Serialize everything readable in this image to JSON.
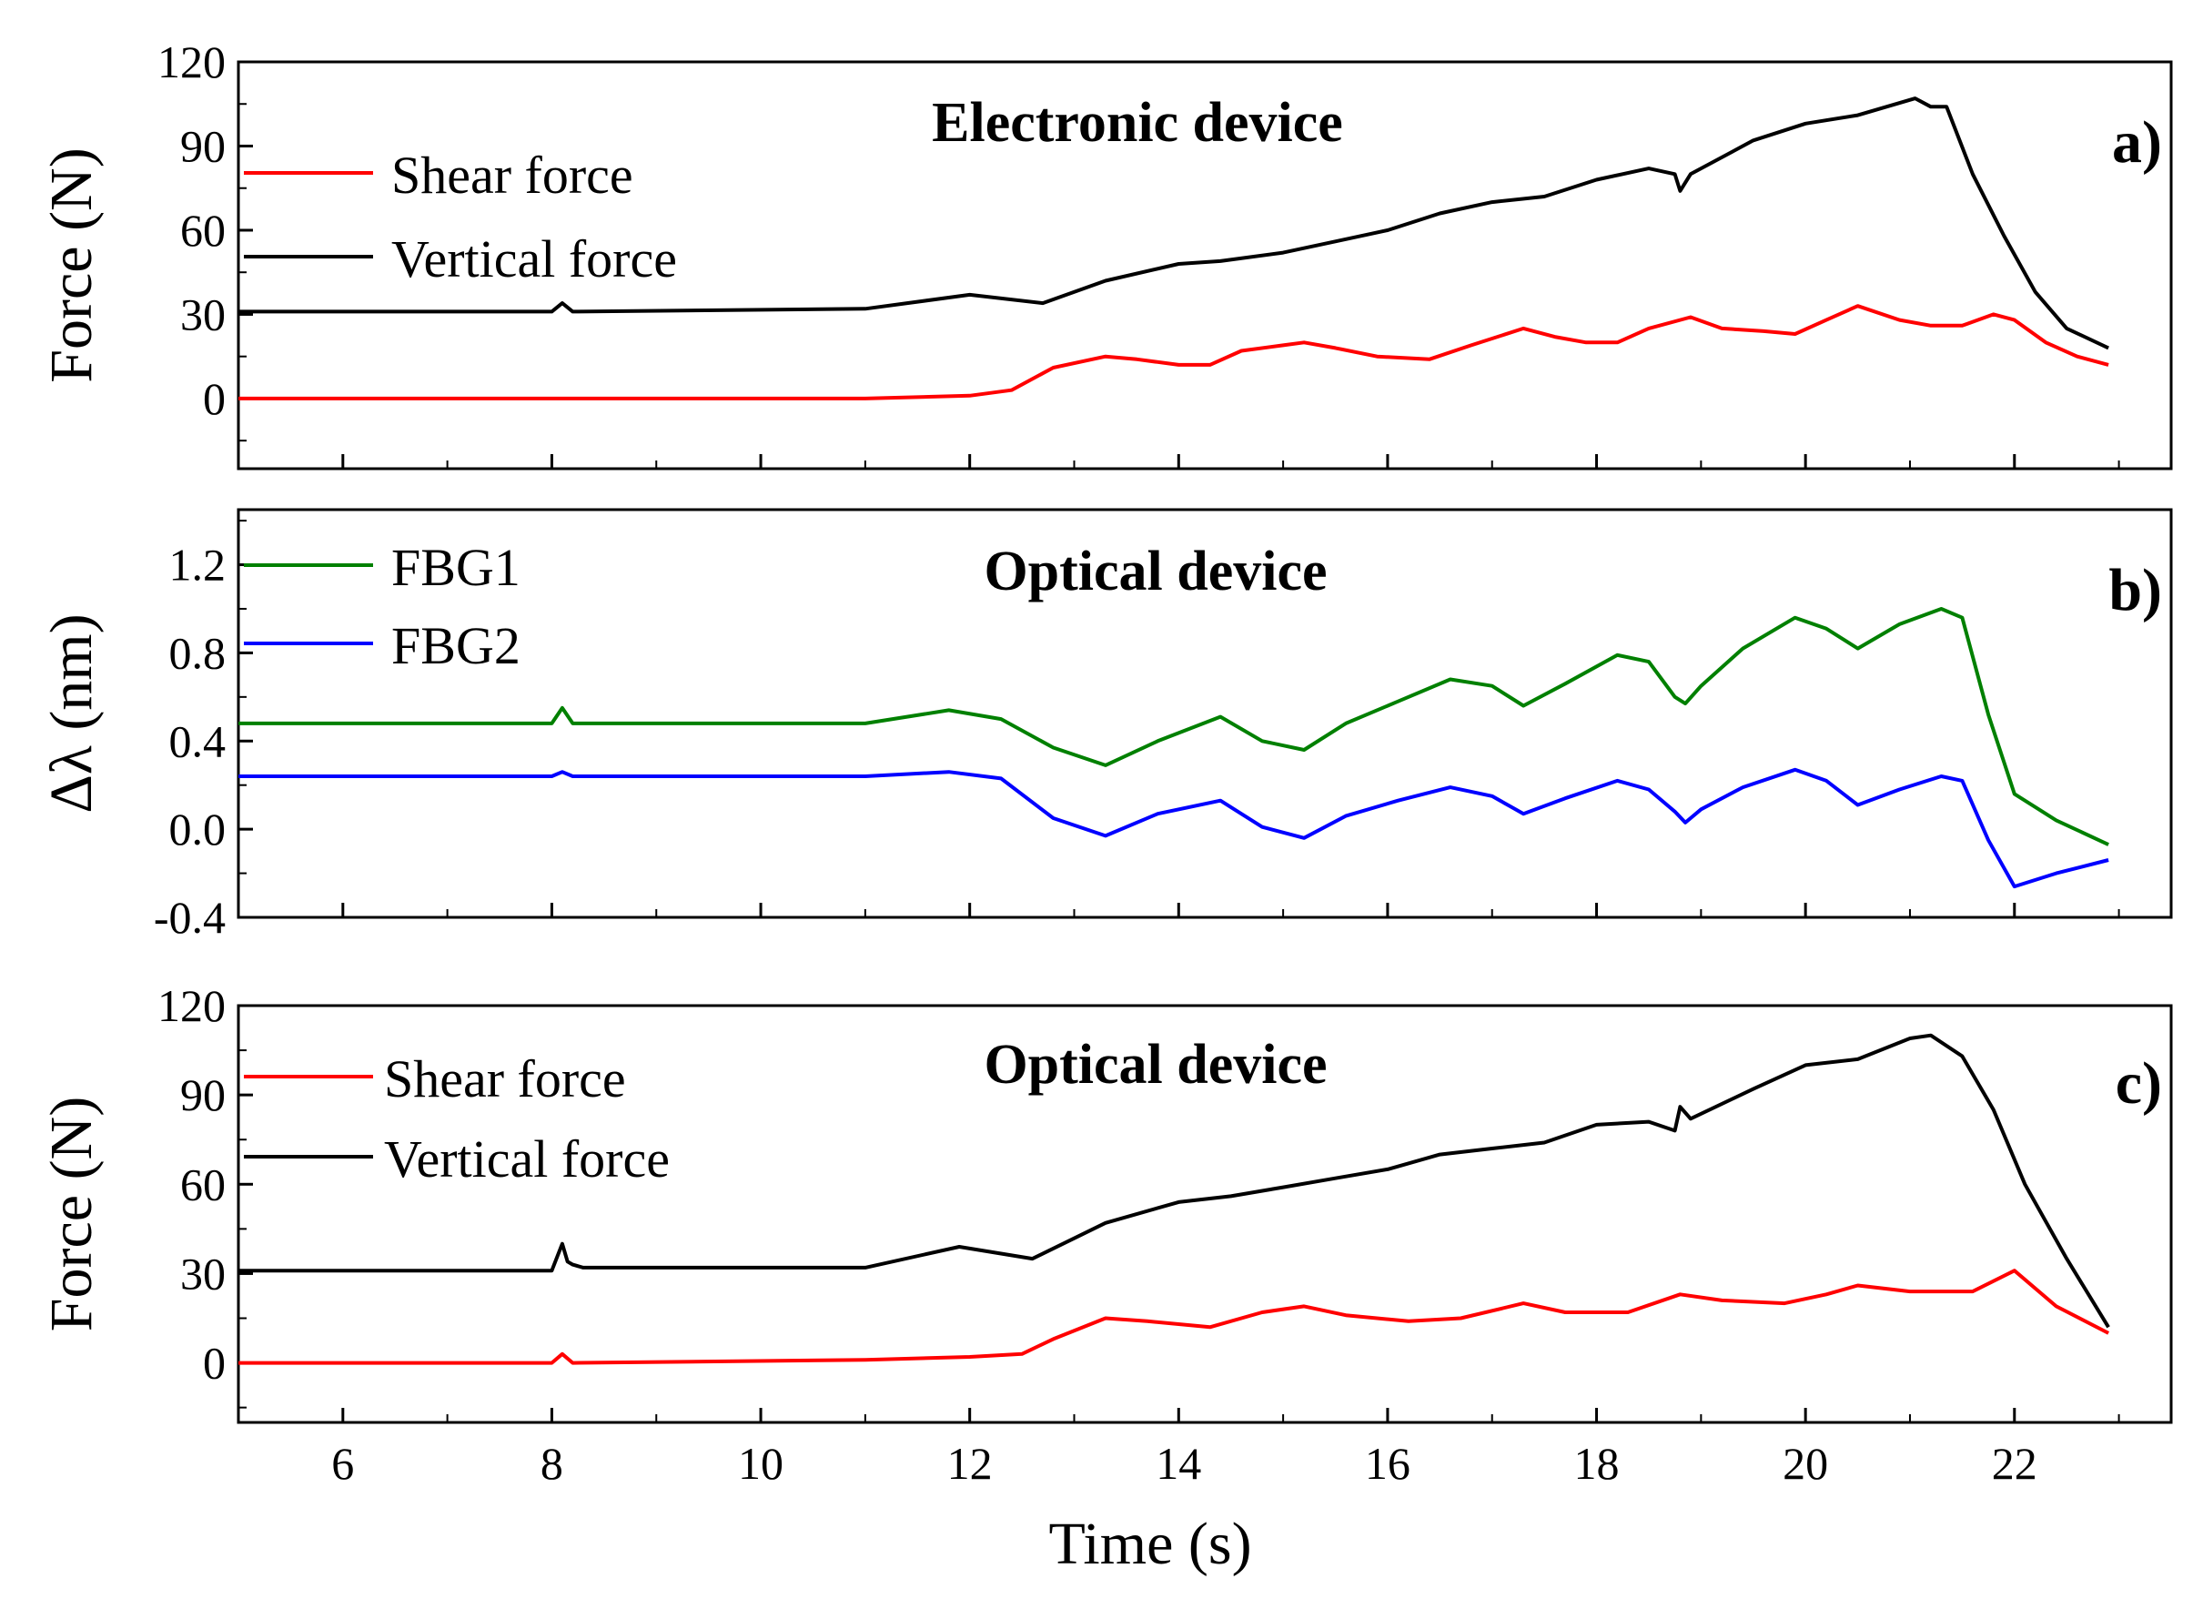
{
  "chart_data": [
    {
      "type": "line",
      "panel_label": "a)",
      "title": "Electronic device",
      "xlabel": "",
      "ylabel": "Force (N)",
      "xlim": [
        5,
        23.5
      ],
      "ylim": [
        -25,
        120
      ],
      "yticks": [
        0,
        30,
        60,
        90,
        120
      ],
      "yticklabels": [
        "0",
        "30",
        "60",
        "90",
        "120"
      ],
      "legend_position": "top-left",
      "series": [
        {
          "name": "Shear force",
          "color": "#ff0000",
          "x": [
            5,
            8,
            11,
            12,
            12.4,
            12.8,
            13.3,
            13.6,
            14,
            14.3,
            14.6,
            15,
            15.2,
            15.5,
            15.9,
            16.4,
            16.8,
            17.3,
            17.6,
            17.9,
            18.2,
            18.5,
            18.9,
            19.2,
            19.6,
            19.9,
            20.2,
            20.5,
            20.9,
            21.2,
            21.5,
            21.8,
            22,
            22.3,
            22.6,
            22.9
          ],
          "values": [
            0,
            0,
            0,
            1,
            3,
            11,
            15,
            14,
            12,
            12,
            17,
            19,
            20,
            18,
            15,
            14,
            19,
            25,
            22,
            20,
            20,
            25,
            29,
            25,
            24,
            23,
            28,
            33,
            28,
            26,
            26,
            30,
            28,
            20,
            15,
            12
          ]
        },
        {
          "name": "Vertical force",
          "color": "#000000",
          "x": [
            5,
            8,
            8.1,
            8.2,
            11,
            12,
            12.7,
            13.3,
            14,
            14.4,
            15,
            15.5,
            16,
            16.5,
            17,
            17.5,
            18,
            18.5,
            18.75,
            18.8,
            18.9,
            19.5,
            20,
            20.5,
            21.05,
            21.2,
            21.35,
            21.6,
            21.9,
            22.2,
            22.5,
            22.9
          ],
          "values": [
            31,
            31,
            34,
            31,
            32,
            37,
            34,
            42,
            48,
            49,
            52,
            56,
            60,
            66,
            70,
            72,
            78,
            82,
            80,
            74,
            80,
            92,
            98,
            101,
            107,
            104,
            104,
            80,
            58,
            38,
            25,
            18
          ]
        }
      ]
    },
    {
      "type": "line",
      "panel_label": "b)",
      "title": "Optical device",
      "xlabel": "",
      "ylabel": "Δλ (nm)",
      "xlim": [
        5,
        23.5
      ],
      "ylim": [
        -0.4,
        1.45
      ],
      "yticks": [
        -0.4,
        0.0,
        0.4,
        0.8,
        1.2
      ],
      "yticklabels": [
        "-0.4",
        "0.0",
        "0.4",
        "0.8",
        "1.2"
      ],
      "legend_position": "top-left",
      "series": [
        {
          "name": "FBG1",
          "color": "#008000",
          "x": [
            5,
            8,
            8.1,
            8.2,
            11,
            11.8,
            12.3,
            12.8,
            13.3,
            13.8,
            14.4,
            14.8,
            15.2,
            15.6,
            16.1,
            16.6,
            17,
            17.3,
            17.7,
            18.2,
            18.5,
            18.75,
            18.85,
            19.0,
            19.4,
            19.9,
            20.2,
            20.5,
            20.9,
            21.3,
            21.5,
            21.75,
            22,
            22.4,
            22.9
          ],
          "values": [
            0.48,
            0.48,
            0.55,
            0.48,
            0.48,
            0.54,
            0.5,
            0.37,
            0.29,
            0.4,
            0.51,
            0.4,
            0.36,
            0.48,
            0.58,
            0.68,
            0.65,
            0.56,
            0.66,
            0.79,
            0.76,
            0.6,
            0.57,
            0.65,
            0.82,
            0.96,
            0.91,
            0.82,
            0.93,
            1.0,
            0.96,
            0.52,
            0.16,
            0.04,
            -0.07
          ]
        },
        {
          "name": "FBG2",
          "color": "#0000ff",
          "x": [
            5,
            8,
            8.1,
            8.2,
            11,
            11.8,
            12.3,
            12.8,
            13.3,
            13.8,
            14.4,
            14.8,
            15.2,
            15.6,
            16.1,
            16.6,
            17,
            17.3,
            17.7,
            18.2,
            18.5,
            18.75,
            18.85,
            19.0,
            19.4,
            19.9,
            20.2,
            20.5,
            20.9,
            21.3,
            21.5,
            21.75,
            22,
            22.4,
            22.9
          ],
          "values": [
            0.24,
            0.24,
            0.26,
            0.24,
            0.24,
            0.26,
            0.23,
            0.05,
            -0.03,
            0.07,
            0.13,
            0.01,
            -0.04,
            0.06,
            0.13,
            0.19,
            0.15,
            0.07,
            0.14,
            0.22,
            0.18,
            0.08,
            0.03,
            0.09,
            0.19,
            0.27,
            0.22,
            0.11,
            0.18,
            0.24,
            0.22,
            -0.05,
            -0.26,
            -0.2,
            -0.14
          ]
        }
      ]
    },
    {
      "type": "line",
      "panel_label": "c)",
      "title": "Optical device",
      "xlabel": "Time (s)",
      "ylabel": "Force (N)",
      "xlim": [
        5,
        23.5
      ],
      "ylim": [
        -20,
        120
      ],
      "yticks": [
        0,
        30,
        60,
        90,
        120
      ],
      "yticklabels": [
        "0",
        "30",
        "60",
        "90",
        "120"
      ],
      "xticks": [
        6,
        8,
        10,
        12,
        14,
        16,
        18,
        20,
        22
      ],
      "xticklabels": [
        "6",
        "8",
        "10",
        "12",
        "14",
        "16",
        "18",
        "20",
        "22"
      ],
      "legend_position": "top-left",
      "series": [
        {
          "name": "Shear force",
          "color": "#ff0000",
          "x": [
            5,
            8,
            8.1,
            8.2,
            11,
            12,
            12.5,
            12.8,
            13.3,
            13.7,
            14.3,
            14.8,
            15.2,
            15.6,
            16.2,
            16.7,
            17.3,
            17.7,
            18.3,
            18.8,
            19.2,
            19.8,
            20.2,
            20.5,
            21,
            21.6,
            22,
            22.4,
            22.9
          ],
          "values": [
            0,
            0,
            3,
            0,
            1,
            2,
            3,
            8,
            15,
            14,
            12,
            17,
            19,
            16,
            14,
            15,
            20,
            17,
            17,
            23,
            21,
            20,
            23,
            26,
            24,
            24,
            31,
            19,
            10
          ]
        },
        {
          "name": "Vertical force",
          "color": "#000000",
          "x": [
            5,
            8,
            8.1,
            8.15,
            8.2,
            8.3,
            11,
            11.9,
            12.6,
            13.3,
            14,
            14.5,
            15,
            15.5,
            16,
            16.5,
            17,
            17.5,
            18,
            18.5,
            18.75,
            18.8,
            18.9,
            19.5,
            20,
            20.5,
            21.0,
            21.2,
            21.5,
            21.8,
            22.1,
            22.5,
            22.9
          ],
          "values": [
            31,
            31,
            40,
            34,
            33,
            32,
            32,
            39,
            35,
            47,
            54,
            56,
            59,
            62,
            65,
            70,
            72,
            74,
            80,
            81,
            78,
            86,
            82,
            92,
            100,
            102,
            109,
            110,
            103,
            85,
            60,
            35,
            12
          ]
        }
      ]
    }
  ]
}
